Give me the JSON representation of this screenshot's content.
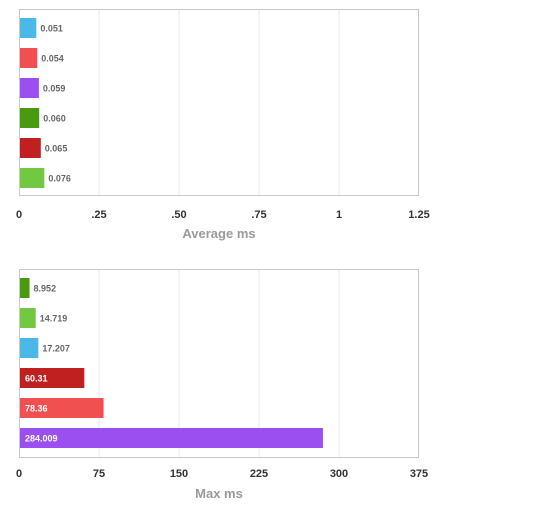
{
  "chart_data": [
    {
      "type": "bar",
      "orientation": "horizontal",
      "xlabel": "Average ms",
      "xlim": [
        0,
        1.25
      ],
      "ticks": [
        0,
        0.25,
        0.5,
        0.75,
        1,
        1.25
      ],
      "tick_labels": [
        "0",
        ".25",
        ".50",
        ".75",
        "1",
        "1.25"
      ],
      "grid": true,
      "bars": [
        {
          "value": 0.051,
          "label": "0.051",
          "color": "#4cb8ea"
        },
        {
          "value": 0.054,
          "label": "0.054",
          "color": "#f05050"
        },
        {
          "value": 0.059,
          "label": "0.059",
          "color": "#9b4ff0"
        },
        {
          "value": 0.06,
          "label": "0.060",
          "color": "#4a9a10"
        },
        {
          "value": 0.065,
          "label": "0.065",
          "color": "#c02020"
        },
        {
          "value": 0.076,
          "label": "0.076",
          "color": "#72c840"
        }
      ]
    },
    {
      "type": "bar",
      "orientation": "horizontal",
      "xlabel": "Max ms",
      "xlim": [
        0,
        375
      ],
      "ticks": [
        0,
        75,
        150,
        225,
        300,
        375
      ],
      "tick_labels": [
        "0",
        "75",
        "150",
        "225",
        "300",
        "375"
      ],
      "grid": true,
      "bars": [
        {
          "value": 8.952,
          "label": "8.952",
          "color": "#4a9a10"
        },
        {
          "value": 14.719,
          "label": "14.719",
          "color": "#72c840"
        },
        {
          "value": 17.207,
          "label": "17.207",
          "color": "#4cb8ea"
        },
        {
          "value": 60.31,
          "label": "60.31",
          "color": "#c02020"
        },
        {
          "value": 78.36,
          "label": "78.36",
          "color": "#f05050"
        },
        {
          "value": 284.009,
          "label": "284.009",
          "color": "#9b4ff0"
        }
      ]
    }
  ]
}
